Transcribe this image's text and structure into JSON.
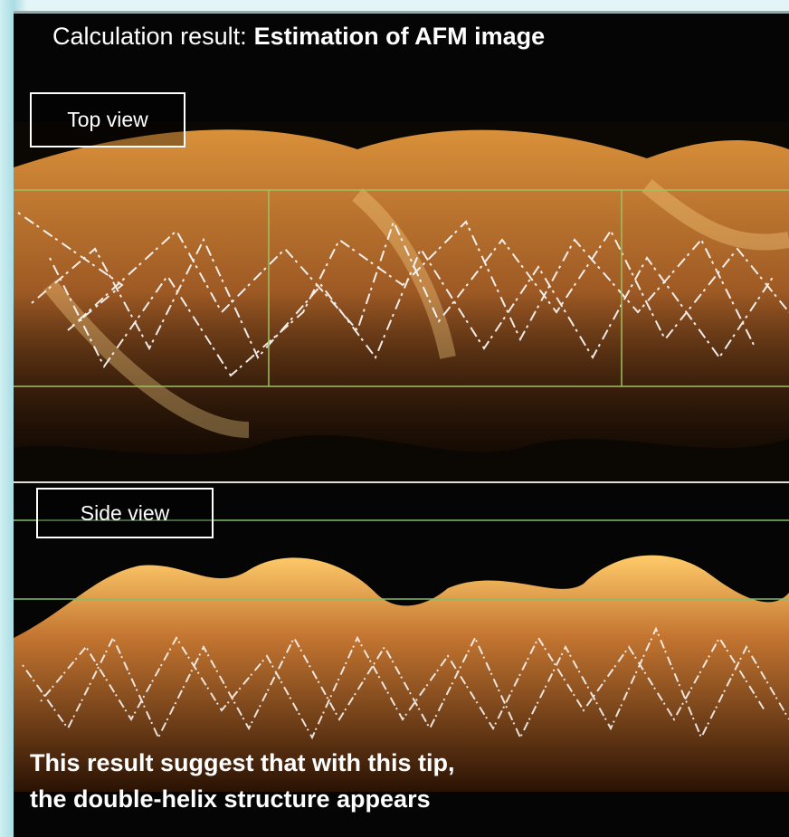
{
  "header": {
    "title_prefix": "Calculation result:",
    "title_emphasis": "Estimation of AFM image"
  },
  "panels": [
    {
      "label": "Top view"
    },
    {
      "label": "Side view"
    }
  ],
  "caption": {
    "lines": [
      "This result suggest that with this tip,",
      "the double-helix structure appears"
    ]
  }
}
